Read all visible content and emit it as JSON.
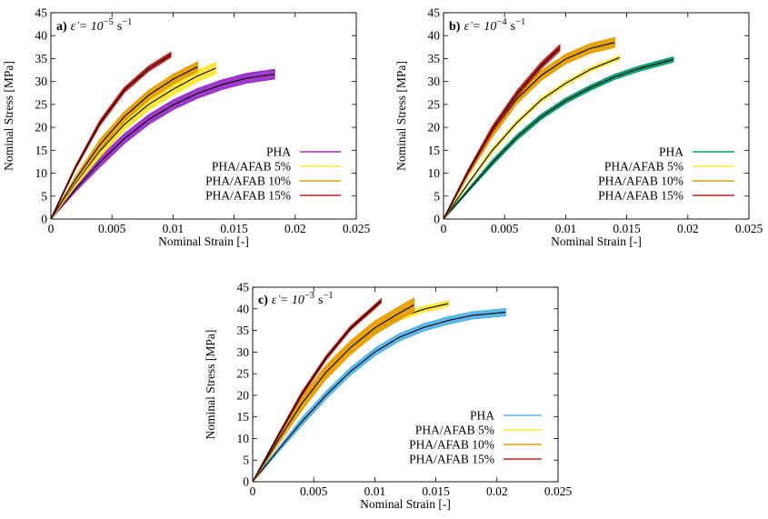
{
  "chart_data": [
    {
      "type": "line",
      "panel_label": "a)",
      "title_expr": "ε̇ = 10",
      "title_exp": "−5",
      "title_unit": "s",
      "title_unit_exp": "−1",
      "xlabel": "Nominal Strain [-]",
      "ylabel": "Nominal Stress [MPa]",
      "xlim": [
        0,
        0.025
      ],
      "ylim": [
        0,
        45
      ],
      "xticks": [
        "0",
        "0.005",
        "0.01",
        "0.015",
        "0.02",
        "0.025"
      ],
      "yticks": [
        "0",
        "5",
        "10",
        "15",
        "20",
        "25",
        "30",
        "35",
        "40",
        "45"
      ],
      "legend_position": "bottom-right",
      "series": [
        {
          "name": "PHA",
          "color": "#9b30c8",
          "band": 1.0,
          "x": [
            0,
            0.002,
            0.004,
            0.006,
            0.008,
            0.01,
            0.012,
            0.014,
            0.016,
            0.0183
          ],
          "y": [
            0,
            6.5,
            12.4,
            17.5,
            21.7,
            24.9,
            27.4,
            29.3,
            30.7,
            31.6
          ]
        },
        {
          "name": "PHA/AFAB 5%",
          "color": "#ffe733",
          "band": 1.2,
          "x": [
            0,
            0.002,
            0.004,
            0.006,
            0.008,
            0.01,
            0.012,
            0.0135
          ],
          "y": [
            0,
            7.8,
            14.8,
            20.6,
            25.0,
            28.3,
            31.2,
            32.9
          ]
        },
        {
          "name": "PHA/AFAB 10%",
          "color": "#e69f00",
          "band": 1.0,
          "x": [
            0,
            0.002,
            0.004,
            0.006,
            0.008,
            0.01,
            0.012
          ],
          "y": [
            0,
            8.6,
            16.2,
            22.3,
            27.0,
            30.5,
            33.2
          ]
        },
        {
          "name": "PHA/AFAB 15%",
          "color": "#c0241b",
          "band": 0.5,
          "x": [
            0,
            0.002,
            0.004,
            0.006,
            0.008,
            0.0098
          ],
          "y": [
            0,
            11.2,
            20.9,
            28.1,
            32.8,
            35.8
          ]
        }
      ]
    },
    {
      "type": "line",
      "panel_label": "b)",
      "title_expr": "ε̇ = 10",
      "title_exp": "−4",
      "title_unit": "s",
      "title_unit_exp": "−1",
      "xlabel": "Nominal Strain [-]",
      "ylabel": "Nominal Stress [MPa]",
      "xlim": [
        0,
        0.025
      ],
      "ylim": [
        0,
        45
      ],
      "xticks": [
        "0",
        "0.005",
        "0.01",
        "0.015",
        "0.02",
        "0.025"
      ],
      "yticks": [
        "0",
        "5",
        "10",
        "15",
        "20",
        "25",
        "30",
        "35",
        "40",
        "45"
      ],
      "legend_position": "bottom-right",
      "series": [
        {
          "name": "PHA",
          "color": "#009e73",
          "band": 0.5,
          "x": [
            0,
            0.002,
            0.004,
            0.006,
            0.008,
            0.01,
            0.012,
            0.014,
            0.016,
            0.0188
          ],
          "y": [
            0,
            6.2,
            12.3,
            17.8,
            22.3,
            25.8,
            28.6,
            31.0,
            32.8,
            34.8
          ]
        },
        {
          "name": "PHA/AFAB 5%",
          "color": "#ffe733",
          "band": 0.4,
          "x": [
            0,
            0.002,
            0.004,
            0.006,
            0.008,
            0.01,
            0.012,
            0.0144
          ],
          "y": [
            0,
            7.7,
            15.0,
            21.0,
            26.0,
            29.6,
            32.6,
            35.2
          ]
        },
        {
          "name": "PHA/AFAB 10%",
          "color": "#e69f00",
          "band": 1.0,
          "x": [
            0,
            0.002,
            0.004,
            0.006,
            0.008,
            0.01,
            0.012,
            0.014
          ],
          "y": [
            0,
            10.0,
            19.0,
            26.2,
            31.3,
            34.9,
            37.2,
            38.5
          ]
        },
        {
          "name": "PHA/AFAB 15%",
          "color": "#c0241b",
          "band": 0.6,
          "x": [
            0,
            0.002,
            0.004,
            0.006,
            0.008,
            0.0095
          ],
          "y": [
            0,
            10.3,
            19.6,
            27.3,
            33.5,
            37.3
          ]
        }
      ]
    },
    {
      "type": "line",
      "panel_label": "c)",
      "title_expr": "ε̇ = 10",
      "title_exp": "−3",
      "title_unit": "s",
      "title_unit_exp": "−1",
      "xlabel": "Nominal Strain [-]",
      "ylabel": "Nominal Stress [MPa]",
      "xlim": [
        0,
        0.025
      ],
      "ylim": [
        0,
        45
      ],
      "xticks": [
        "0",
        "0.005",
        "0.01",
        "0.015",
        "0.02",
        "0.025"
      ],
      "yticks": [
        "0",
        "5",
        "10",
        "15",
        "20",
        "25",
        "30",
        "35",
        "40",
        "45"
      ],
      "legend_position": "bottom-right",
      "series": [
        {
          "name": "PHA",
          "color": "#56b4e9",
          "band": 0.8,
          "x": [
            0,
            0.002,
            0.004,
            0.006,
            0.008,
            0.01,
            0.012,
            0.014,
            0.016,
            0.018,
            0.0207
          ],
          "y": [
            0,
            7.0,
            13.8,
            20.0,
            25.5,
            30.0,
            33.4,
            35.7,
            37.3,
            38.5,
            39.2
          ]
        },
        {
          "name": "PHA/AFAB 5%",
          "color": "#ffe733",
          "band": 0.6,
          "x": [
            0,
            0.002,
            0.004,
            0.006,
            0.008,
            0.01,
            0.012,
            0.014,
            0.016
          ],
          "y": [
            0,
            9.3,
            18.2,
            25.5,
            31.0,
            35.1,
            38.0,
            39.9,
            41.2
          ]
        },
        {
          "name": "PHA/AFAB 10%",
          "color": "#e69f00",
          "band": 1.5,
          "x": [
            0,
            0.002,
            0.004,
            0.006,
            0.008,
            0.01,
            0.012,
            0.0132
          ],
          "y": [
            0,
            9.2,
            18.0,
            25.3,
            31.0,
            35.6,
            39.0,
            40.9
          ]
        },
        {
          "name": "PHA/AFAB 15%",
          "color": "#c0241b",
          "band": 0.4,
          "x": [
            0,
            0.002,
            0.004,
            0.006,
            0.008,
            0.01,
            0.0105
          ],
          "y": [
            0,
            10.2,
            20.2,
            28.6,
            35.5,
            40.5,
            41.8
          ]
        }
      ]
    }
  ]
}
